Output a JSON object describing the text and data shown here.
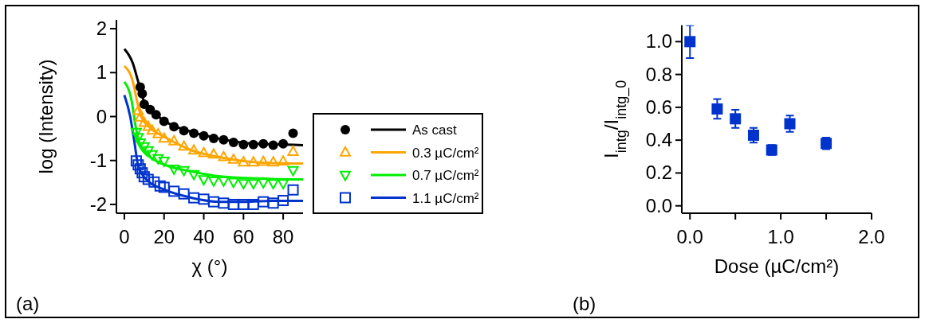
{
  "chart_data": [
    {
      "type": "scatter",
      "xlabel": "χ (°)",
      "ylabel": "log (Intensity)",
      "xlim": [
        -4,
        90
      ],
      "ylim": [
        -2.2,
        2.2
      ],
      "xticks": [
        0,
        20,
        40,
        60,
        80
      ],
      "yticks": [
        -2,
        -1,
        0,
        1,
        2
      ],
      "legend": "right",
      "grid": false,
      "annotations": [
        "(a)"
      ],
      "series": [
        {
          "name": "As cast",
          "type": "scatter",
          "marker": "circle",
          "color": "#000000",
          "x": [
            8,
            9,
            10,
            13,
            16,
            20,
            25,
            30,
            35,
            40,
            45,
            50,
            55,
            60,
            65,
            70,
            75,
            80,
            85
          ],
          "values": [
            0.67,
            0.52,
            0.28,
            0.16,
            0.04,
            -0.11,
            -0.23,
            -0.32,
            -0.38,
            -0.44,
            -0.5,
            -0.53,
            -0.59,
            -0.64,
            -0.64,
            -0.62,
            -0.65,
            -0.62,
            -0.38
          ]
        },
        {
          "type": "line",
          "marker": "none",
          "color": "#000000",
          "x": [
            0,
            4.3,
            7,
            9.7,
            13.8,
            20.5,
            34,
            47.5,
            61,
            74.5,
            90
          ],
          "values": [
            1.54,
            1.21,
            0.79,
            0.37,
            0.13,
            -0.11,
            -0.35,
            -0.5,
            -0.6,
            -0.63,
            -0.65
          ]
        },
        {
          "name": "0.3 µC/cm²",
          "type": "scatter",
          "marker": "triangle",
          "color": "#ffa500",
          "x": [
            7,
            8,
            10,
            12,
            14,
            17,
            20,
            25,
            30,
            35,
            40,
            45,
            50,
            55,
            60,
            65,
            70,
            75,
            80,
            85
          ],
          "values": [
            0.13,
            -0.02,
            -0.14,
            -0.23,
            -0.32,
            -0.4,
            -0.5,
            -0.56,
            -0.68,
            -0.77,
            -0.83,
            -0.86,
            -0.92,
            -0.98,
            -1.04,
            -1.04,
            -1.03,
            -1.04,
            -1.02,
            -0.8
          ]
        },
        {
          "type": "line",
          "marker": "none",
          "color": "#ffa500",
          "x": [
            0,
            4.3,
            6.3,
            8.4,
            13.8,
            20.5,
            34,
            47.5,
            61,
            74.5,
            90
          ],
          "values": [
            1.15,
            0.79,
            0.37,
            0.01,
            -0.29,
            -0.47,
            -0.77,
            -0.92,
            -1.02,
            -1.06,
            -1.07
          ]
        },
        {
          "name": "0.7 µC/cm²",
          "type": "scatter",
          "marker": "triangle-down",
          "color": "#00ee00",
          "x": [
            6,
            7,
            8,
            10,
            12,
            14,
            17,
            20,
            25,
            30,
            35,
            40,
            45,
            50,
            55,
            60,
            65,
            70,
            75,
            80,
            85
          ],
          "values": [
            -0.35,
            -0.47,
            -0.59,
            -0.68,
            -0.77,
            -0.86,
            -0.95,
            -1.01,
            -1.19,
            -1.22,
            -1.31,
            -1.43,
            -1.46,
            -1.46,
            -1.49,
            -1.52,
            -1.52,
            -1.5,
            -1.52,
            -1.52,
            -1.22
          ]
        },
        {
          "type": "line",
          "marker": "none",
          "color": "#00ee00",
          "x": [
            0,
            3.6,
            5.7,
            8.4,
            13.8,
            20.5,
            34,
            47.5,
            61,
            74.5,
            90
          ],
          "values": [
            0.79,
            0.37,
            -0.23,
            -0.71,
            -0.95,
            -1.1,
            -1.25,
            -1.36,
            -1.4,
            -1.42,
            -1.43
          ]
        },
        {
          "name": "1.1 µC/cm²",
          "type": "scatter",
          "marker": "square",
          "color": "#0033cc",
          "x": [
            6,
            7,
            8,
            9,
            10,
            12,
            15,
            18,
            20,
            25,
            30,
            35,
            40,
            45,
            50,
            55,
            60,
            65,
            70,
            75,
            80,
            85
          ],
          "values": [
            -1.01,
            -1.1,
            -1.19,
            -1.28,
            -1.37,
            -1.43,
            -1.49,
            -1.58,
            -1.61,
            -1.7,
            -1.76,
            -1.85,
            -1.88,
            -1.94,
            -1.97,
            -2.0,
            -2.0,
            -2.0,
            -1.94,
            -1.97,
            -1.91,
            -1.67
          ]
        },
        {
          "type": "line",
          "marker": "none",
          "color": "#0033cc",
          "x": [
            0,
            2.9,
            4.9,
            7,
            11.1,
            20.5,
            34,
            47.5,
            61,
            74.5,
            90
          ],
          "values": [
            0.49,
            0.01,
            -0.53,
            -1.13,
            -1.43,
            -1.67,
            -1.85,
            -1.94,
            -1.94,
            -1.92,
            -1.92
          ]
        }
      ]
    },
    {
      "type": "scatter",
      "xlabel": "Dose (µC/cm²)",
      "ylabel": "I$_{intg}$/I$_{intg_0}$",
      "xlim": [
        -0.09,
        2.0
      ],
      "ylim": [
        -0.045,
        1.1
      ],
      "xticks": [
        {
          "value": 0,
          "label": "0.0"
        },
        {
          "value": 0.5,
          "label": null
        },
        {
          "value": 1,
          "label": "1.0"
        },
        {
          "value": 1.5,
          "label": null
        },
        {
          "value": 2,
          "label": "2.0"
        }
      ],
      "yticks": [
        {
          "value": 0,
          "label": "0.0"
        },
        {
          "value": 0.2,
          "label": "0.2"
        },
        {
          "value": 0.4,
          "label": "0.4"
        },
        {
          "value": 0.6,
          "label": "0.6"
        },
        {
          "value": 0.8,
          "label": "0.8"
        },
        {
          "value": 1,
          "label": "1.0"
        }
      ],
      "grid": false,
      "legend": false,
      "annotations": [
        "(b)"
      ],
      "series": [
        {
          "type": "scatter",
          "marker": "square",
          "color": "#0033cc",
          "x": [
            0,
            0.3,
            0.5,
            0.7,
            0.9,
            1.1,
            1.5
          ],
          "values": [
            1.0,
            0.59,
            0.53,
            0.43,
            0.34,
            0.5,
            0.38
          ],
          "errors": [
            0.1,
            0.06,
            0.055,
            0.045,
            0.03,
            0.05,
            0.035
          ]
        }
      ]
    }
  ]
}
